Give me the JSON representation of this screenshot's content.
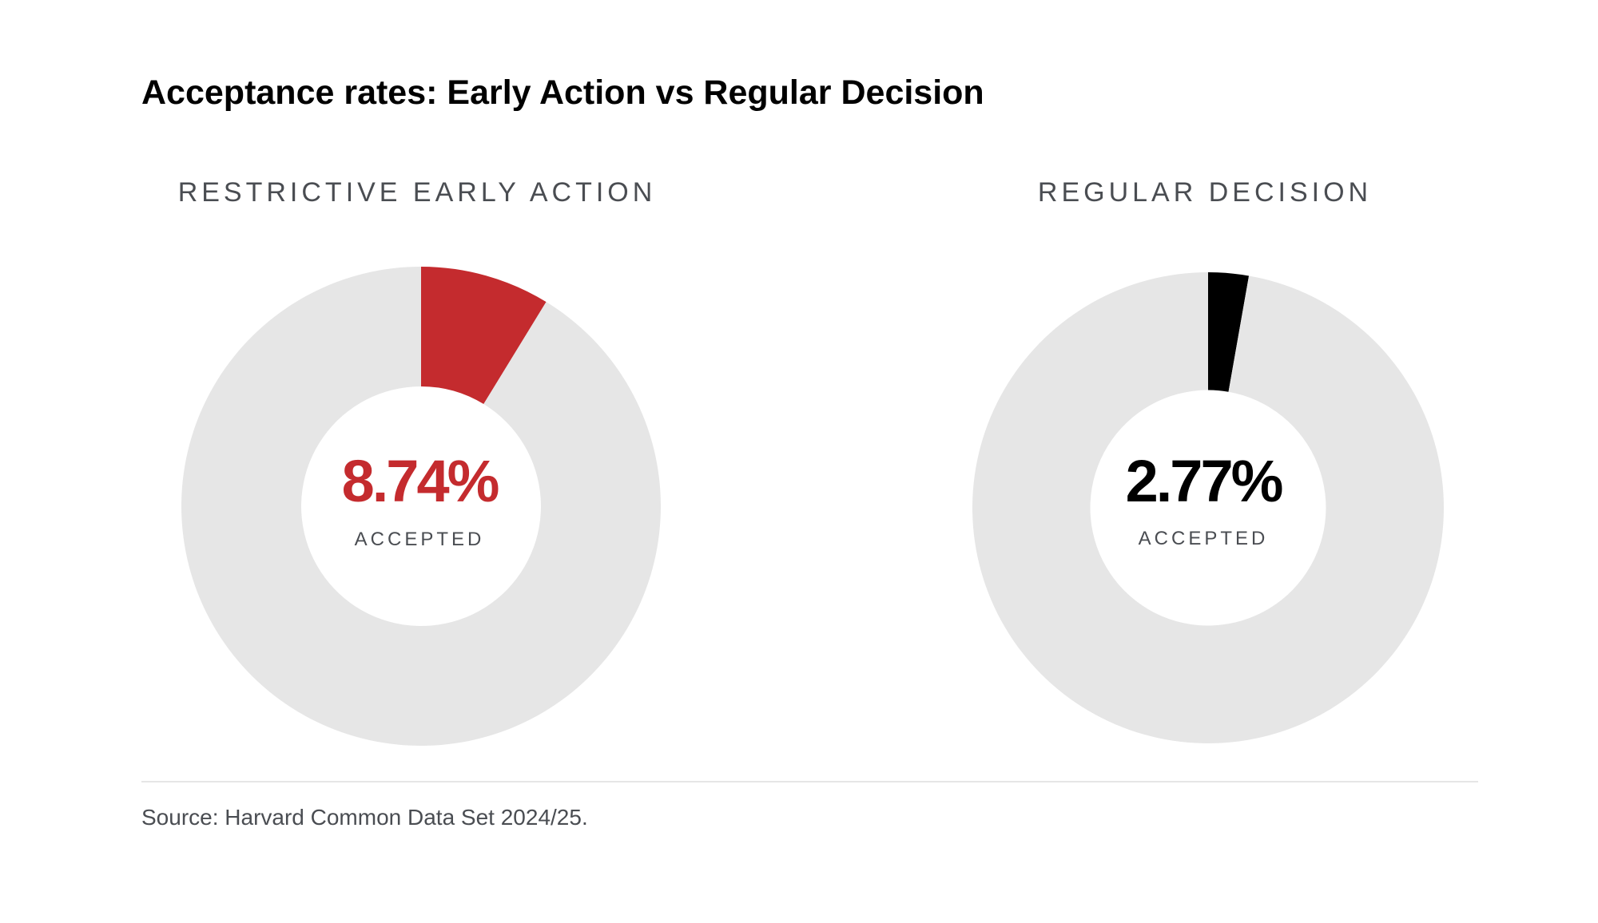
{
  "title": "Acceptance rates: Early Action vs Regular Decision",
  "source": "Source: Harvard Common Data Set 2024/25.",
  "colors": {
    "track": "#e6e6e6",
    "early_action": "#c42b2e",
    "regular_decision": "#000000"
  },
  "chart_data": [
    {
      "type": "pie",
      "title": "RESTRICTIVE EARLY ACTION",
      "categories": [
        "ACCEPTED",
        ""
      ],
      "values": [
        8.74,
        91.26
      ],
      "center_label": "8.74%",
      "center_sublabel": "ACCEPTED",
      "color": "#c42b2e"
    },
    {
      "type": "pie",
      "title": "REGULAR DECISION",
      "categories": [
        "ACCEPTED",
        ""
      ],
      "values": [
        2.77,
        97.23
      ],
      "center_label": "2.77%",
      "center_sublabel": "ACCEPTED",
      "color": "#000000"
    }
  ]
}
